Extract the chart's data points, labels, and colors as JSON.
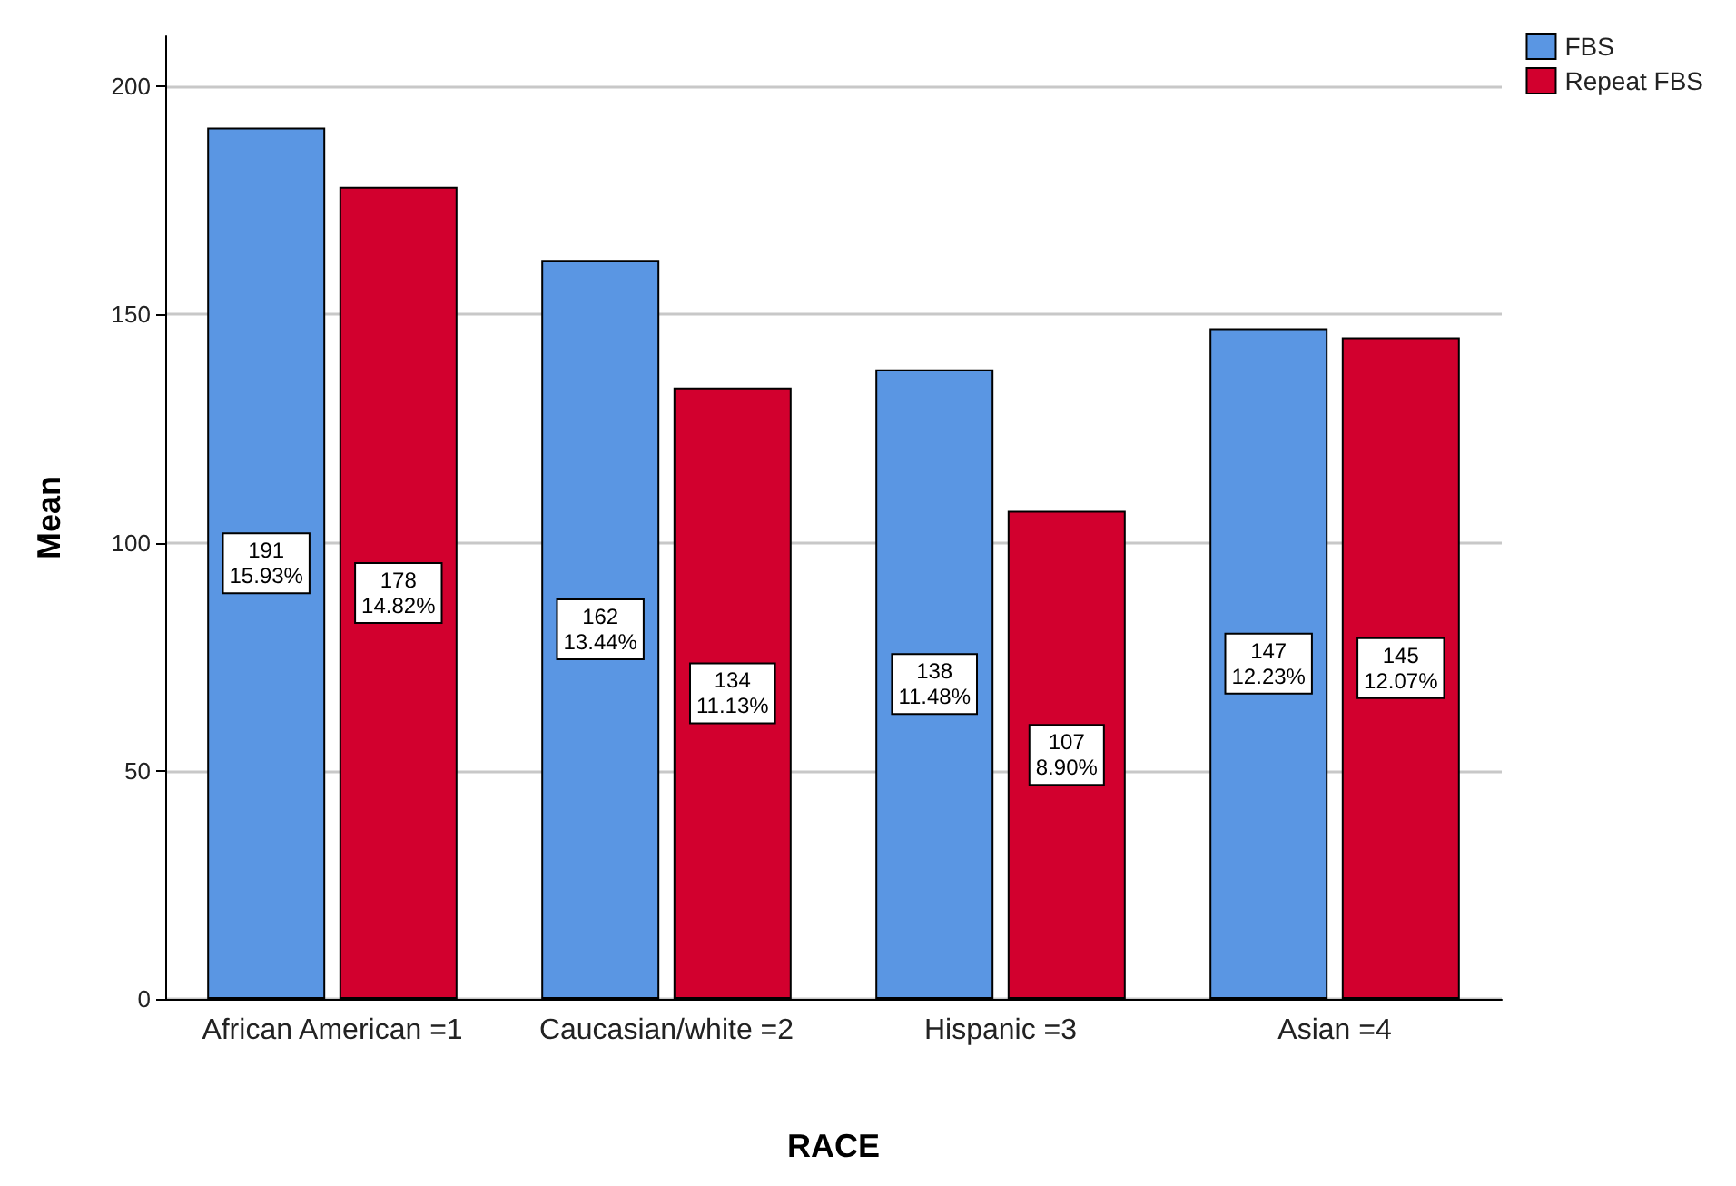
{
  "chart_data": {
    "type": "bar",
    "xlabel": "RACE",
    "ylabel": "Mean",
    "categories": [
      "African American =1",
      "Caucasian/white =2",
      "Hispanic =3",
      "Asian =4"
    ],
    "series": [
      {
        "name": "FBS",
        "color": "#5a96e3",
        "values": [
          191,
          162,
          138,
          147
        ],
        "value_labels": [
          "191\n15.93%",
          "162\n13.44%",
          "138\n11.48%",
          "147\n12.23%"
        ]
      },
      {
        "name": "Repeat FBS",
        "color": "#d2002e",
        "values": [
          178,
          134,
          107,
          145
        ],
        "value_labels": [
          "178\n14.82%",
          "134\n11.13%",
          "107\n8.90%",
          "145\n12.07%"
        ]
      }
    ],
    "ylim": [
      0,
      211
    ],
    "yticks": [
      0,
      50,
      100,
      150,
      200
    ],
    "grid": "y",
    "legend": "top right"
  }
}
